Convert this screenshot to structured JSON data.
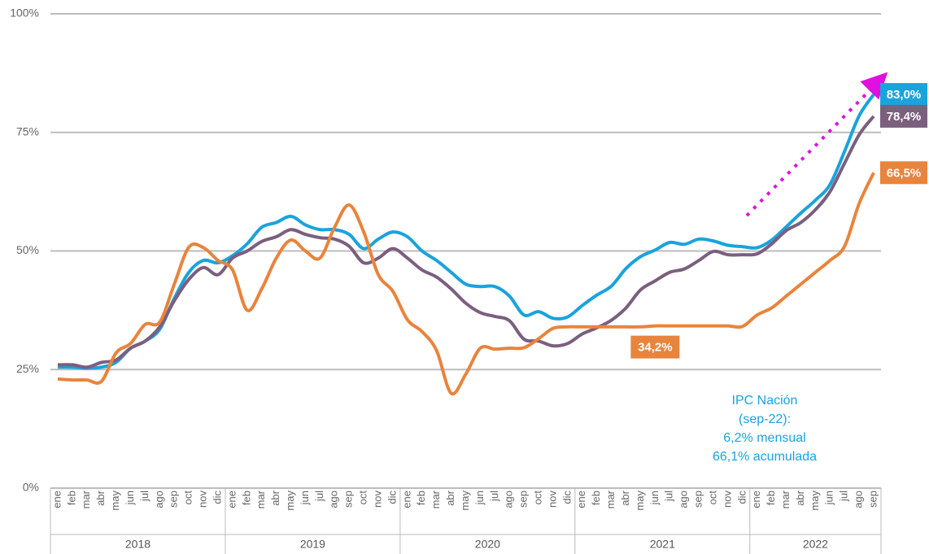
{
  "chart_data": {
    "type": "line",
    "categories": [
      "ene",
      "feb",
      "mar",
      "abr",
      "may",
      "jun",
      "jul",
      "ago",
      "sep",
      "oct",
      "nov",
      "dic",
      "ene",
      "feb",
      "mar",
      "abr",
      "may",
      "jun",
      "jul",
      "ago",
      "sep",
      "oct",
      "nov",
      "dic",
      "ene",
      "feb",
      "mar",
      "abr",
      "may",
      "jun",
      "jul",
      "ago",
      "sep",
      "oct",
      "nov",
      "dic",
      "ene",
      "feb",
      "mar",
      "abr",
      "may",
      "jun",
      "jul",
      "ago",
      "sep",
      "oct",
      "nov",
      "dic",
      "ene",
      "feb",
      "mar",
      "abr",
      "may",
      "jun",
      "jul",
      "ago",
      "sep"
    ],
    "year_labels": [
      "2018",
      "2019",
      "2020",
      "2021",
      "2022"
    ],
    "ylim": [
      0,
      100
    ],
    "yticks": [
      {
        "value": 0,
        "label": "0%"
      },
      {
        "value": 25,
        "label": "25%"
      },
      {
        "value": 50,
        "label": "50%"
      },
      {
        "value": 75,
        "label": "75%"
      },
      {
        "value": 100,
        "label": "100%"
      }
    ],
    "grid": true,
    "series": [
      {
        "color": "#1aa3dc",
        "values": [
          25.5,
          25.5,
          25.3,
          25.5,
          26.5,
          29.5,
          31,
          33.5,
          40,
          45.5,
          48,
          47.5,
          49,
          51.5,
          55,
          56,
          57.3,
          55.5,
          54.5,
          54.5,
          53.5,
          50.5,
          52.5,
          54,
          53,
          50,
          48,
          45.5,
          43,
          42.5,
          42.5,
          40.5,
          36.5,
          37.2,
          35.8,
          36.1,
          38.5,
          40.7,
          42.6,
          46.3,
          48.8,
          50.2,
          51.8,
          51.4,
          52.5,
          52.1,
          51.2,
          50.9,
          50.7,
          52.3,
          55.1,
          58,
          60.7,
          64,
          71,
          78.5,
          83
        ],
        "value_labels": [
          null,
          null,
          null,
          null,
          null,
          null,
          null,
          null,
          null,
          null,
          null,
          null,
          null,
          null,
          null,
          null,
          null,
          null,
          null,
          null,
          null,
          null,
          null,
          null,
          null,
          null,
          null,
          null,
          null,
          null,
          null,
          null,
          null,
          null,
          null,
          null,
          null,
          null,
          null,
          null,
          null,
          null,
          null,
          null,
          null,
          null,
          null,
          null,
          null,
          null,
          null,
          null,
          null,
          null,
          null,
          null,
          "83,0%"
        ]
      },
      {
        "color": "#7b5f7e",
        "values": [
          26,
          26,
          25.5,
          26.5,
          27,
          29.5,
          31,
          34,
          39.5,
          44,
          46.5,
          45,
          48.5,
          50,
          52,
          53,
          54.5,
          53.5,
          52.8,
          52.5,
          51,
          47.5,
          48.5,
          50.5,
          48.5,
          46,
          44.5,
          42,
          39,
          37,
          36.2,
          35.3,
          31.4,
          31,
          30,
          30.5,
          32.5,
          33.8,
          35.4,
          38,
          41.8,
          43.7,
          45.5,
          46.2,
          48,
          49.9,
          49.2,
          49.2,
          49.4,
          51.5,
          54.3,
          56,
          58.7,
          62.5,
          68.5,
          74.5,
          78.4
        ],
        "value_labels": [
          null,
          null,
          null,
          null,
          null,
          null,
          null,
          null,
          null,
          null,
          null,
          null,
          null,
          null,
          null,
          null,
          null,
          null,
          null,
          null,
          null,
          null,
          null,
          null,
          null,
          null,
          null,
          null,
          null,
          null,
          null,
          null,
          null,
          null,
          null,
          null,
          null,
          null,
          null,
          null,
          null,
          null,
          null,
          null,
          null,
          null,
          null,
          null,
          null,
          null,
          null,
          null,
          null,
          null,
          null,
          null,
          "78,4%"
        ]
      },
      {
        "color": "#e8843c",
        "values": [
          23,
          22.8,
          22.8,
          22.5,
          28.5,
          30.5,
          34.5,
          35,
          43,
          50.8,
          50.7,
          48,
          46,
          37.5,
          42,
          48.5,
          52.3,
          50,
          48.5,
          55,
          59.7,
          54,
          45,
          41.5,
          35.5,
          33,
          29,
          20,
          24,
          29.5,
          29.3,
          29.5,
          29.6,
          31.5,
          33.7,
          34,
          34,
          34,
          34,
          34,
          34,
          34.2,
          34.2,
          34.2,
          34.2,
          34.2,
          34.2,
          34.1,
          36.5,
          38,
          40.5,
          43,
          45.5,
          48,
          51,
          60,
          66.5
        ],
        "value_labels": [
          null,
          null,
          null,
          null,
          null,
          null,
          null,
          null,
          null,
          null,
          null,
          null,
          null,
          null,
          null,
          null,
          null,
          null,
          null,
          null,
          null,
          null,
          null,
          null,
          null,
          null,
          null,
          null,
          null,
          null,
          null,
          null,
          null,
          null,
          null,
          null,
          null,
          null,
          null,
          null,
          null,
          "34,2%",
          null,
          null,
          null,
          null,
          null,
          null,
          null,
          null,
          null,
          null,
          null,
          null,
          null,
          null,
          "66,5%"
        ]
      }
    ],
    "annotation": {
      "color": "#1aa3dc",
      "lines": [
        "IPC Nación",
        "(sep-22):",
        "6,2% mensual",
        "66,1% acumulada"
      ]
    }
  }
}
